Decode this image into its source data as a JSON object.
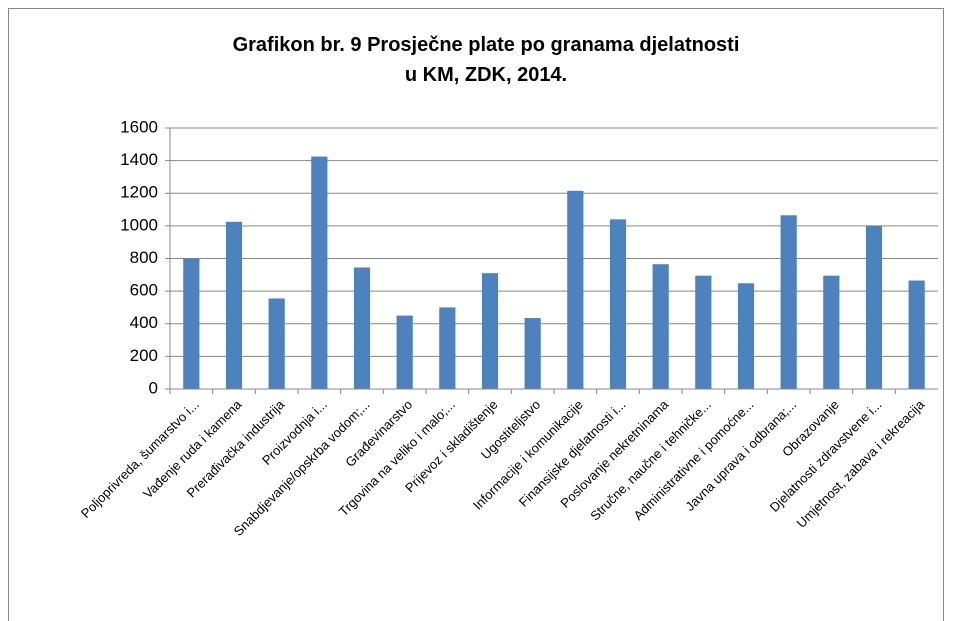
{
  "chart_data": {
    "type": "bar",
    "title": "Grafikon br. 9 Prosječne plate po granama djelatnosti u KM, ZDK, 2014.",
    "categories": [
      "Poljoprivreda, šumarstvo i...",
      "Vađenje ruda i kamena",
      "Prerađivačka industrija",
      "Proizvodnja i...",
      "Snabdjevanje/opskrba vodom;...",
      "Građevinarstvo",
      "Trgovina na veliko i malo;...",
      "Prijevoz i skladištenje",
      "Ugostiteljstvo",
      "Informacije i komunikacije",
      "Finansijske djelatnosti i...",
      "Poslovanje nekretninama",
      "Stručne, naučne i tehničke...",
      "Administrativne i pomoćne...",
      "Javna uprava i odbrana;...",
      "Obrazovanje",
      "Djelatnosti zdravstvene i...",
      "Umjetnost, zabava i rekreacija"
    ],
    "values": [
      800,
      1025,
      555,
      1425,
      745,
      450,
      500,
      710,
      435,
      1215,
      1040,
      765,
      695,
      648,
      1065,
      695,
      1000,
      665
    ],
    "color": "#4f81bd",
    "ylim": [
      0,
      1600
    ],
    "yticks": [
      0,
      200,
      400,
      600,
      800,
      1000,
      1200,
      1400,
      1600
    ],
    "grid": true
  }
}
